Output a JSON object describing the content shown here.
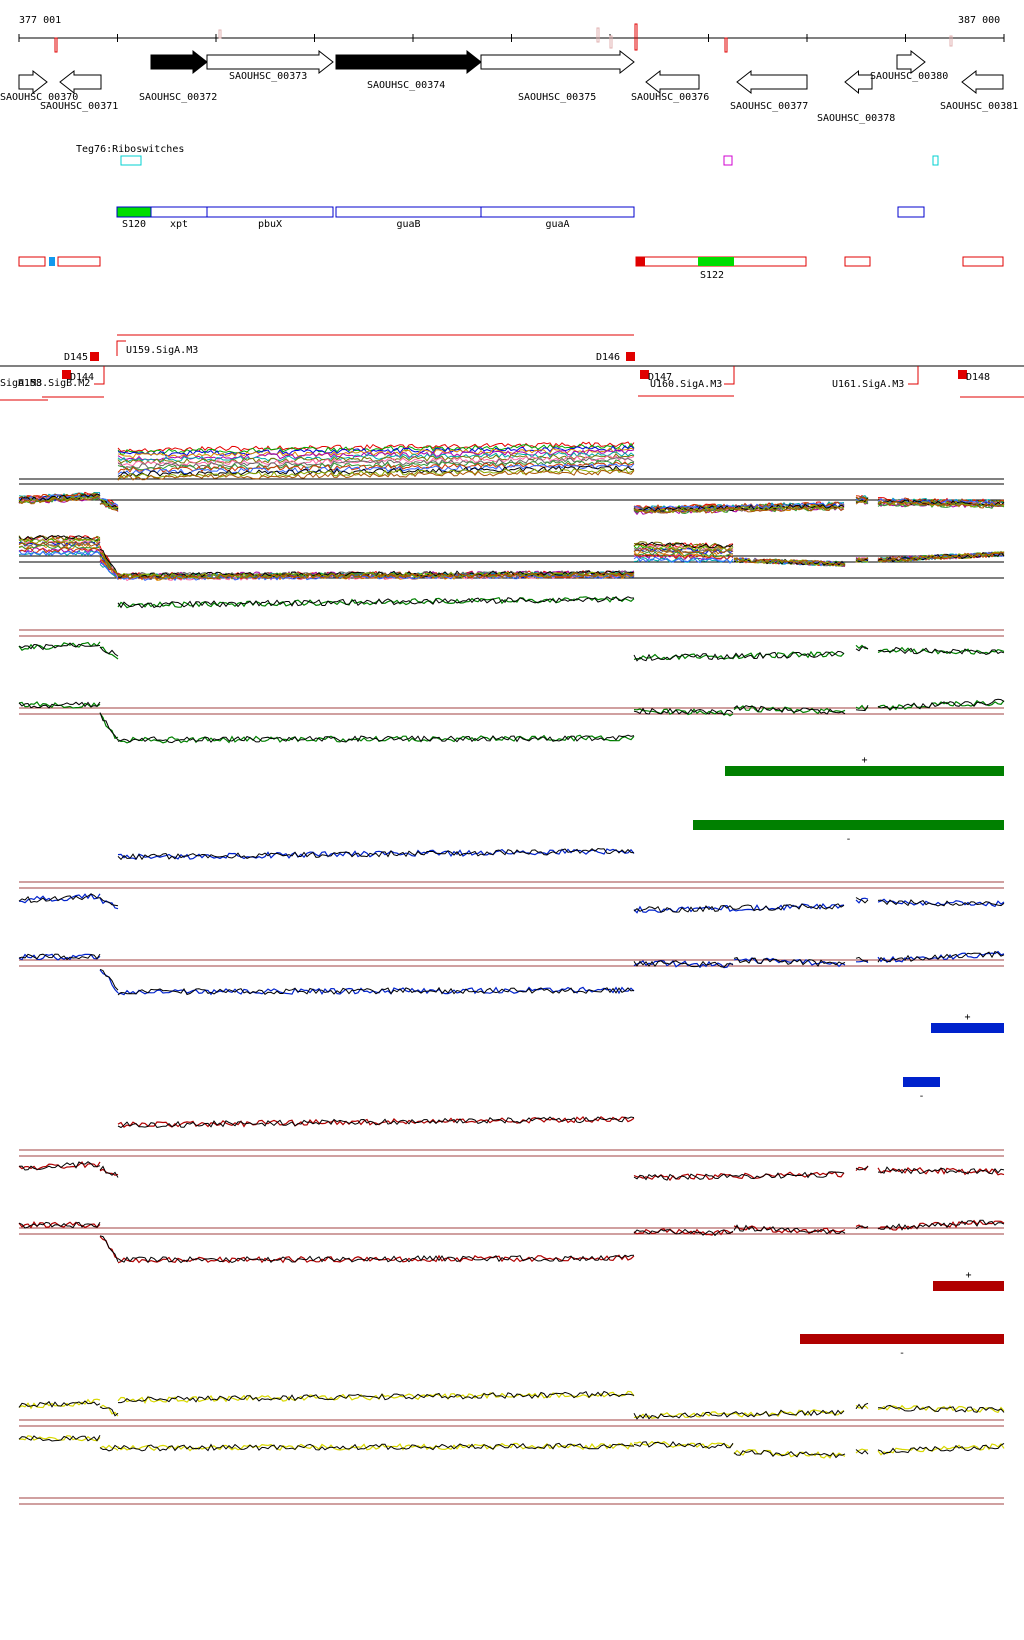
{
  "ruler": {
    "start_label": "377 001",
    "end_label": "387 000"
  },
  "genes": [
    {
      "label": "SAOUHSC_00370",
      "strand": "+",
      "filled": false
    },
    {
      "label": "SAOUHSC_00371",
      "strand": "-",
      "filled": false
    },
    {
      "label": "SAOUHSC_00372",
      "strand": "+",
      "filled": true
    },
    {
      "label": "SAOUHSC_00373",
      "strand": "+",
      "filled": false
    },
    {
      "label": "SAOUHSC_00374",
      "strand": "+",
      "filled": true
    },
    {
      "label": "SAOUHSC_00375",
      "strand": "+",
      "filled": false
    },
    {
      "label": "SAOUHSC_00376",
      "strand": "-",
      "filled": false
    },
    {
      "label": "SAOUHSC_00377",
      "strand": "-",
      "filled": false
    },
    {
      "label": "SAOUHSC_00378",
      "strand": "-",
      "filled": false
    },
    {
      "label": "SAOUHSC_00380",
      "strand": "+",
      "filled": false
    },
    {
      "label": "SAOUHSC_00381",
      "strand": "-",
      "filled": false
    }
  ],
  "riboswitch_track_label": "Teg76:Riboswitches",
  "operon_labels": [
    "S120",
    "xpt",
    "pbuX",
    "guaB",
    "guaA"
  ],
  "srna_label": "S122",
  "promoters": [
    "U159.SigA.M3",
    "U160.SigA.M3",
    "U161.SigA.M3",
    "U158.SigB.M2",
    "SigA.M3"
  ],
  "transcript_labels": [
    "D145",
    "D144",
    "D146",
    "D147",
    "D148"
  ],
  "strand_markers": {
    "plus": "+",
    "minus": "-"
  },
  "colors": {
    "condition_1": "#008000",
    "condition_2": "#0022cc",
    "condition_3": "#b00000",
    "condition_4": "#d8d800",
    "annotation": "#e00000",
    "operon": "#0000cc"
  }
}
